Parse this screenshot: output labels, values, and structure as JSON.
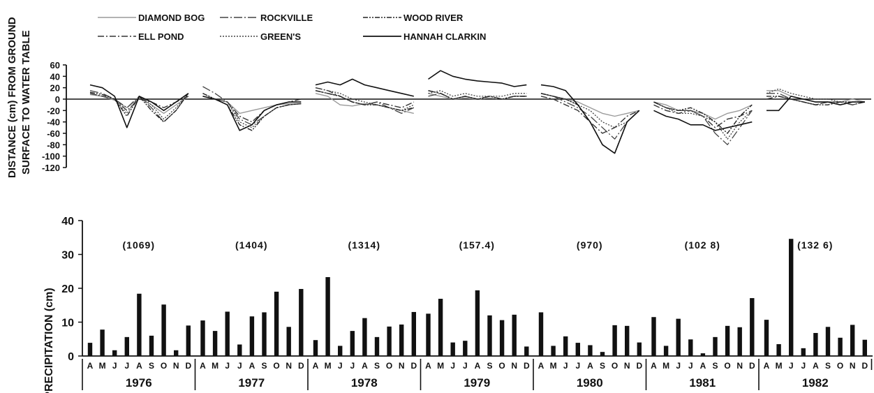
{
  "chart_data": [
    {
      "type": "line",
      "ylabel_lines": [
        "DISTANCE (cm) FROM GROUND",
        "SURFACE TO WATER TABLE"
      ],
      "ylim": [
        -120,
        60
      ],
      "yticks": [
        60,
        40,
        20,
        0,
        -20,
        -40,
        -60,
        -80,
        -100,
        -120
      ],
      "legend_placement": "top-left",
      "series": [
        {
          "name": "DIAMOND BOG",
          "style": "light",
          "x": [
            0,
            1,
            2,
            3,
            4,
            5,
            6,
            7,
            8,
            12,
            13,
            14,
            15,
            16,
            17,
            18,
            19,
            20,
            24,
            25,
            26,
            27,
            28,
            29,
            30,
            31,
            32,
            36,
            37,
            38,
            39,
            40,
            41,
            42,
            43,
            44,
            48,
            49,
            50,
            51,
            52,
            53,
            54,
            55,
            56,
            60,
            61,
            62,
            63,
            64,
            65,
            66,
            67,
            68,
            72,
            73,
            74,
            75,
            76,
            77,
            78,
            79,
            80
          ],
          "y": [
            8,
            5,
            -2,
            -15,
            2,
            -10,
            -25,
            -10,
            5,
            5,
            0,
            -5,
            -25,
            -20,
            -15,
            -10,
            -8,
            -8,
            10,
            5,
            -10,
            -12,
            -8,
            -10,
            -15,
            -20,
            -25,
            10,
            5,
            0,
            2,
            0,
            2,
            0,
            5,
            5,
            10,
            5,
            0,
            -5,
            -15,
            -25,
            -30,
            -25,
            -20,
            -5,
            -10,
            -20,
            -20,
            -25,
            -35,
            -25,
            -20,
            -10,
            15,
            15,
            5,
            0,
            -5,
            -5,
            -5,
            0,
            -5
          ]
        },
        {
          "name": "ELL POND",
          "style": "dashdot",
          "x": [
            0,
            1,
            2,
            3,
            4,
            5,
            6,
            7,
            8,
            12,
            13,
            14,
            15,
            16,
            17,
            18,
            19,
            20,
            24,
            25,
            26,
            27,
            28,
            29,
            30,
            31,
            32,
            36,
            37,
            38,
            39,
            40,
            41,
            42,
            43,
            44,
            48,
            49,
            50,
            51,
            52,
            53,
            54,
            55,
            56,
            60,
            61,
            62,
            63,
            64,
            65,
            66,
            67,
            68,
            72,
            73,
            74,
            75,
            76,
            77,
            78,
            79,
            80
          ],
          "y": [
            10,
            5,
            0,
            -20,
            0,
            -5,
            -15,
            -5,
            5,
            5,
            0,
            -5,
            -30,
            -40,
            -20,
            -10,
            -5,
            0,
            20,
            15,
            5,
            -5,
            -10,
            -5,
            -10,
            -15,
            -5,
            15,
            10,
            0,
            5,
            0,
            0,
            0,
            5,
            5,
            5,
            0,
            -10,
            -20,
            -40,
            -60,
            -50,
            -30,
            -20,
            -10,
            -20,
            -25,
            -20,
            -30,
            -50,
            -35,
            -30,
            -20,
            0,
            5,
            0,
            -5,
            -10,
            -5,
            -5,
            -10,
            -5
          ]
        },
        {
          "name": "ROCKVILLE",
          "style": "longdashdot",
          "x": [
            0,
            1,
            2,
            3,
            4,
            5,
            6,
            7,
            8,
            12,
            13,
            14,
            15,
            16,
            17,
            18,
            19,
            20,
            24,
            25,
            26,
            27,
            28,
            29,
            30,
            31,
            32,
            36,
            37,
            38,
            39,
            40,
            41,
            42,
            43,
            44,
            48,
            49,
            50,
            51,
            52,
            53,
            54,
            55,
            56,
            60,
            61,
            62,
            63,
            64,
            65,
            66,
            67,
            68,
            72,
            73,
            74,
            75,
            76,
            77,
            78,
            79,
            80
          ],
          "y": [
            15,
            10,
            0,
            -15,
            5,
            -15,
            -40,
            -20,
            10,
            22,
            10,
            -5,
            -35,
            -45,
            -30,
            -15,
            -10,
            -8,
            15,
            10,
            5,
            -5,
            -10,
            -5,
            -15,
            -25,
            -15,
            5,
            10,
            0,
            5,
            0,
            5,
            0,
            5,
            5,
            10,
            5,
            -5,
            -15,
            -30,
            -50,
            -70,
            -40,
            -20,
            -5,
            -15,
            -20,
            -20,
            -30,
            -60,
            -80,
            -50,
            -20,
            10,
            10,
            0,
            -5,
            -10,
            -5,
            -5,
            -10,
            -5
          ]
        },
        {
          "name": "GREEN'S",
          "style": "dotted",
          "x": [
            0,
            1,
            2,
            3,
            4,
            5,
            6,
            7,
            8,
            12,
            13,
            14,
            15,
            16,
            17,
            18,
            19,
            20,
            24,
            25,
            26,
            27,
            28,
            29,
            30,
            31,
            32,
            36,
            37,
            38,
            39,
            40,
            41,
            42,
            43,
            44,
            48,
            49,
            50,
            51,
            52,
            53,
            54,
            55,
            56,
            60,
            61,
            62,
            63,
            64,
            65,
            66,
            67,
            68,
            72,
            73,
            74,
            75,
            76,
            77,
            78,
            79,
            80
          ],
          "y": [
            10,
            5,
            0,
            -25,
            5,
            -10,
            -35,
            -15,
            10,
            10,
            0,
            -5,
            -40,
            -50,
            -30,
            -15,
            -10,
            -8,
            20,
            15,
            10,
            0,
            -5,
            -10,
            -15,
            -20,
            -10,
            10,
            15,
            5,
            10,
            5,
            5,
            5,
            10,
            10,
            10,
            5,
            0,
            -10,
            -20,
            -40,
            -50,
            -40,
            -20,
            -5,
            -15,
            -25,
            -25,
            -30,
            -40,
            -70,
            -40,
            -20,
            10,
            18,
            10,
            5,
            0,
            0,
            -5,
            -5,
            -5
          ]
        },
        {
          "name": "WOOD RIVER",
          "style": "dashdotdot",
          "x": [
            0,
            1,
            2,
            3,
            4,
            5,
            6,
            7,
            8,
            12,
            13,
            14,
            15,
            16,
            17,
            18,
            19,
            20,
            24,
            25,
            26,
            27,
            28,
            29,
            30,
            31,
            32,
            36,
            37,
            38,
            39,
            40,
            41,
            42,
            43,
            44,
            48,
            49,
            50,
            51,
            52,
            53,
            54,
            55,
            56,
            60,
            61,
            62,
            63,
            64,
            65,
            66,
            67,
            68,
            72,
            73,
            74,
            75,
            76,
            77,
            78,
            79,
            80
          ],
          "y": [
            12,
            8,
            0,
            -30,
            5,
            -20,
            -40,
            -20,
            10,
            10,
            0,
            -10,
            -45,
            -55,
            -30,
            -15,
            -10,
            -8,
            15,
            10,
            5,
            -5,
            -10,
            -10,
            -15,
            -20,
            -15,
            15,
            10,
            0,
            5,
            0,
            5,
            0,
            5,
            5,
            10,
            5,
            0,
            -10,
            -40,
            -80,
            -95,
            -40,
            -20,
            -5,
            -15,
            -20,
            -15,
            -25,
            -40,
            -60,
            -30,
            -10,
            5,
            5,
            0,
            -5,
            -10,
            -10,
            -5,
            -5,
            -5
          ]
        },
        {
          "name": "HANNAH CLARKIN",
          "style": "solid",
          "x": [
            0,
            1,
            2,
            3,
            4,
            5,
            6,
            7,
            8,
            12,
            13,
            14,
            15,
            16,
            17,
            18,
            19,
            20,
            24,
            25,
            26,
            27,
            28,
            29,
            30,
            31,
            32,
            36,
            37,
            38,
            39,
            40,
            41,
            42,
            43,
            44,
            48,
            49,
            50,
            51,
            52,
            53,
            54,
            55,
            56,
            60,
            61,
            62,
            63,
            64,
            65,
            66,
            67,
            68,
            72,
            73,
            74,
            75,
            76,
            77,
            78,
            79,
            80
          ],
          "y": [
            25,
            20,
            5,
            -50,
            5,
            -5,
            -20,
            -5,
            10,
            5,
            0,
            -10,
            -55,
            -45,
            -20,
            -10,
            -5,
            -5,
            25,
            30,
            25,
            35,
            25,
            20,
            15,
            10,
            5,
            35,
            50,
            40,
            35,
            32,
            30,
            28,
            22,
            25,
            25,
            22,
            15,
            -10,
            -40,
            -80,
            -95,
            -40,
            -20,
            -20,
            -30,
            -35,
            -45,
            -45,
            -55,
            -50,
            -45,
            -40,
            -20,
            -20,
            5,
            0,
            -5,
            -5,
            -10,
            -5,
            -5
          ]
        }
      ]
    },
    {
      "type": "bar",
      "ylabel": "PRECIPITATION (cm)",
      "ylim": [
        0,
        40
      ],
      "yticks": [
        0,
        10,
        20,
        30,
        40
      ],
      "month_labels": [
        "A",
        "M",
        "J",
        "J",
        "A",
        "S",
        "O",
        "N",
        "D"
      ],
      "years": [
        {
          "year": "1976",
          "total": "(1069)",
          "values": [
            3.9,
            7.8,
            1.7,
            5.6,
            18.4,
            6.0,
            15.2,
            1.7,
            9.0
          ]
        },
        {
          "year": "1977",
          "total": "(1404)",
          "values": [
            10.5,
            7.4,
            13.1,
            3.4,
            11.7,
            12.9,
            19.0,
            8.6,
            19.8
          ]
        },
        {
          "year": "1978",
          "total": "(1314)",
          "values": [
            4.7,
            23.3,
            3.0,
            7.4,
            11.2,
            5.6,
            8.7,
            9.3,
            13.0
          ]
        },
        {
          "year": "1979",
          "total": "(157.4)",
          "values": [
            12.5,
            16.9,
            4.0,
            4.5,
            19.4,
            12.0,
            10.6,
            12.2,
            2.8
          ]
        },
        {
          "year": "1980",
          "total": "(970)",
          "values": [
            12.9,
            3.0,
            5.8,
            3.9,
            3.2,
            1.2,
            9.1,
            8.9,
            4.0
          ]
        },
        {
          "year": "1981",
          "total": "(102 8)",
          "values": [
            11.5,
            3.0,
            11.0,
            4.9,
            0.8,
            5.6,
            8.9,
            8.5,
            17.1
          ]
        },
        {
          "year": "1982",
          "total": "(132 6)",
          "values": [
            10.7,
            3.5,
            34.6,
            2.3,
            6.8,
            8.6,
            5.4,
            9.2,
            4.8
          ]
        }
      ]
    }
  ]
}
